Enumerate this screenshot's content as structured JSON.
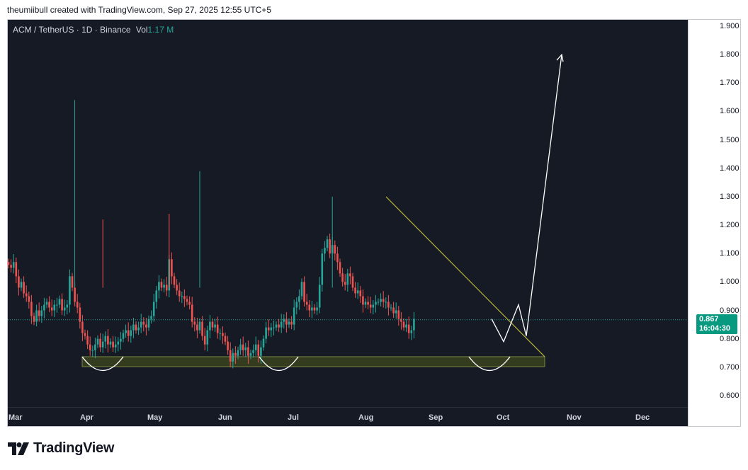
{
  "header": {
    "attribution": "theumiibull created with TradingView.com, Sep 27, 2025 12:55 UTC+5"
  },
  "legend": {
    "symbol": "ACM / TetherUS · 1D · Binance",
    "vol_label": "Vol",
    "vol_value": "1.17 M"
  },
  "chart_data": {
    "type": "candlestick",
    "title": "ACM / TetherUS · 1D · Binance",
    "ylim": [
      0.55,
      1.92
    ],
    "y_ticks": [
      "0.600",
      "0.700",
      "0.800",
      "0.900",
      "1.000",
      "1.100",
      "1.200",
      "1.300",
      "1.400",
      "1.500",
      "1.600",
      "1.700",
      "1.800",
      "1.900"
    ],
    "x_ticks": [
      "Mar",
      "Apr",
      "May",
      "Jun",
      "Jul",
      "Aug",
      "Sep",
      "Oct",
      "Nov",
      "Dec"
    ],
    "last_price": "0.867",
    "countdown": "16:04:30",
    "colors": {
      "up": "#26a69a",
      "down": "#ef5350",
      "background": "#161a25",
      "trendline": "#b5b23a",
      "support": "#3a4320",
      "projection": "#ffffff"
    },
    "candles_close": [
      1.06,
      1.05,
      1.07,
      1.02,
      0.98,
      1.0,
      0.96,
      0.95,
      0.93,
      0.88,
      0.86,
      0.9,
      0.88,
      0.9,
      0.92,
      0.93,
      0.91,
      0.9,
      0.92,
      0.92,
      0.94,
      0.9,
      0.91,
      0.92,
      1.02,
      0.98,
      0.93,
      0.91,
      0.86,
      0.82,
      0.81,
      0.78,
      0.76,
      0.76,
      0.78,
      0.8,
      0.77,
      0.79,
      0.81,
      0.78,
      0.79,
      0.77,
      0.78,
      0.79,
      0.8,
      0.82,
      0.83,
      0.81,
      0.83,
      0.85,
      0.83,
      0.84,
      0.86,
      0.85,
      0.84,
      0.87,
      0.88,
      0.93,
      0.97,
      1.0,
      0.98,
      0.99,
      0.97,
      1.08,
      1.02,
      0.99,
      0.97,
      0.95,
      0.95,
      0.94,
      0.93,
      0.92,
      0.86,
      0.85,
      0.83,
      0.86,
      0.81,
      0.78,
      0.83,
      0.86,
      0.84,
      0.85,
      0.82,
      0.82,
      0.81,
      0.79,
      0.76,
      0.72,
      0.75,
      0.74,
      0.76,
      0.78,
      0.76,
      0.77,
      0.74,
      0.75,
      0.76,
      0.78,
      0.74,
      0.77,
      0.8,
      0.84,
      0.83,
      0.84,
      0.84,
      0.85,
      0.84,
      0.86,
      0.87,
      0.85,
      0.86,
      0.85,
      0.91,
      0.93,
      0.95,
      1.0,
      0.93,
      0.92,
      0.9,
      0.91,
      0.9,
      0.91,
      0.99,
      1.1,
      1.12,
      1.15,
      1.1,
      1.13,
      1.1,
      1.07,
      1.03,
      1.0,
      0.99,
      1.03,
      1.02,
      0.98,
      0.96,
      0.97,
      0.95,
      0.92,
      0.93,
      0.92,
      0.91,
      0.92,
      0.93,
      0.93,
      0.94,
      0.93,
      0.93,
      0.91,
      0.91,
      0.89,
      0.9,
      0.87,
      0.86,
      0.84,
      0.85,
      0.82,
      0.83,
      0.87
    ]
  },
  "annotations": {
    "support_zone": [
      0.702,
      0.737
    ],
    "trendline": [
      {
        "date_index": 127,
        "price": 1.3
      },
      {
        "date_index": 199,
        "price": 0.737
      }
    ],
    "projection_points": [
      [
        167,
        0.87
      ],
      [
        171,
        0.79
      ],
      [
        176,
        0.92
      ],
      [
        179,
        0.81
      ],
      [
        189,
        1.8
      ]
    ]
  },
  "footer": {
    "brand": "TradingView"
  }
}
